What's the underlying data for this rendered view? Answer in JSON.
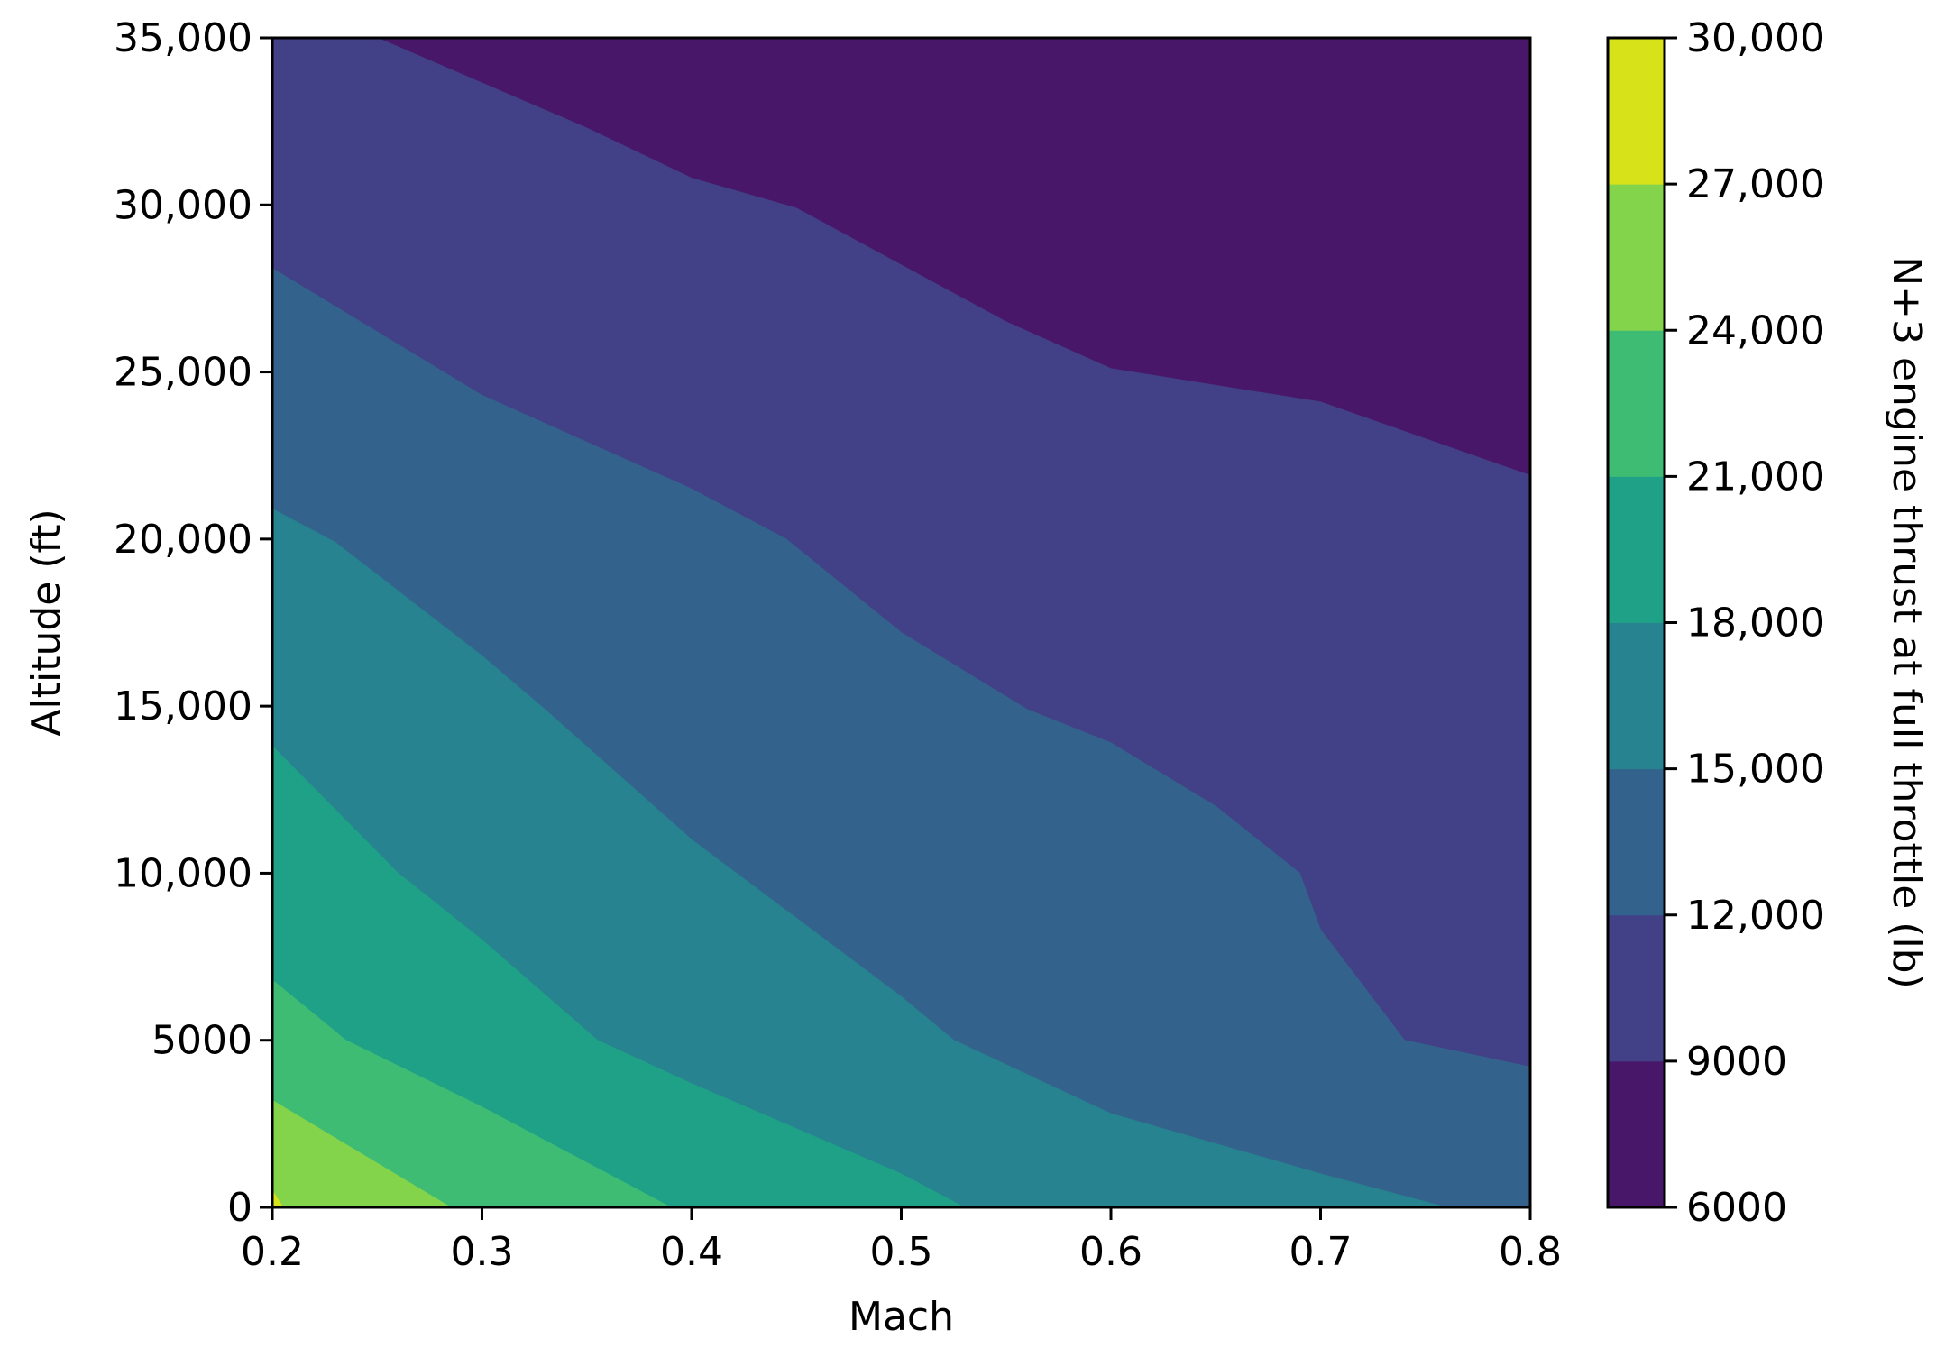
{
  "chart_data": {
    "type": "contour_filled",
    "xlabel": "Mach",
    "ylabel": "Altitude (ft)",
    "colorbar_label": "N+3 engine thrust at full throttle (lb)",
    "xlim": [
      0.2,
      0.8
    ],
    "ylim": [
      0,
      35000
    ],
    "x_ticks": [
      0.2,
      0.3,
      0.4,
      0.5,
      0.6,
      0.7,
      0.8
    ],
    "x_tick_labels": [
      "0.2",
      "0.3",
      "0.4",
      "0.5",
      "0.6",
      "0.7",
      "0.8"
    ],
    "y_ticks": [
      0,
      5000,
      10000,
      15000,
      20000,
      25000,
      30000,
      35000
    ],
    "y_tick_labels": [
      "0",
      "5000",
      "10,000",
      "15,000",
      "20,000",
      "25,000",
      "30,000",
      "35,000"
    ],
    "levels": [
      6000,
      9000,
      12000,
      15000,
      18000,
      21000,
      24000,
      27000,
      30000
    ],
    "level_labels": [
      "6000",
      "9000",
      "12,000",
      "15,000",
      "18,000",
      "21,000",
      "24,000",
      "27,000",
      "30,000"
    ],
    "colors": [
      "#481769",
      "#424086",
      "#33638d",
      "#26838f",
      "#1fa187",
      "#3fbc73",
      "#84d44b",
      "#d8e219"
    ],
    "colormap": "viridis",
    "contour_lines": [
      {
        "level": 9000,
        "points": [
          [
            0.25,
            35000
          ],
          [
            0.35,
            32300
          ],
          [
            0.4,
            30800
          ],
          [
            0.45,
            29900
          ],
          [
            0.5,
            28200
          ],
          [
            0.55,
            26500
          ],
          [
            0.6,
            25100
          ],
          [
            0.7,
            24100
          ],
          [
            0.8,
            21900
          ]
        ]
      },
      {
        "level": 12000,
        "points": [
          [
            0.2,
            28100
          ],
          [
            0.3,
            24300
          ],
          [
            0.4,
            21500
          ],
          [
            0.445,
            20000
          ],
          [
            0.5,
            17200
          ],
          [
            0.56,
            14900
          ],
          [
            0.6,
            13900
          ],
          [
            0.65,
            12000
          ],
          [
            0.69,
            10000
          ],
          [
            0.7,
            8300
          ],
          [
            0.74,
            5000
          ],
          [
            0.8,
            4200
          ]
        ]
      },
      {
        "level": 15000,
        "points": [
          [
            0.2,
            20900
          ],
          [
            0.23,
            19900
          ],
          [
            0.3,
            16500
          ],
          [
            0.33,
            14900
          ],
          [
            0.4,
            11000
          ],
          [
            0.5,
            6300
          ],
          [
            0.525,
            5000
          ],
          [
            0.6,
            2800
          ],
          [
            0.7,
            1000
          ],
          [
            0.76,
            0
          ]
        ]
      },
      {
        "level": 18000,
        "points": [
          [
            0.2,
            13800
          ],
          [
            0.26,
            10000
          ],
          [
            0.3,
            8000
          ],
          [
            0.355,
            5000
          ],
          [
            0.4,
            3700
          ],
          [
            0.5,
            1000
          ],
          [
            0.53,
            0
          ]
        ]
      },
      {
        "level": 21000,
        "points": [
          [
            0.2,
            6800
          ],
          [
            0.235,
            5000
          ],
          [
            0.3,
            3000
          ],
          [
            0.39,
            0
          ]
        ]
      },
      {
        "level": 24000,
        "points": [
          [
            0.2,
            3200
          ],
          [
            0.285,
            0
          ]
        ]
      },
      {
        "level": 27000,
        "points": [
          [
            0.2,
            500
          ],
          [
            0.205,
            0
          ]
        ]
      }
    ]
  }
}
